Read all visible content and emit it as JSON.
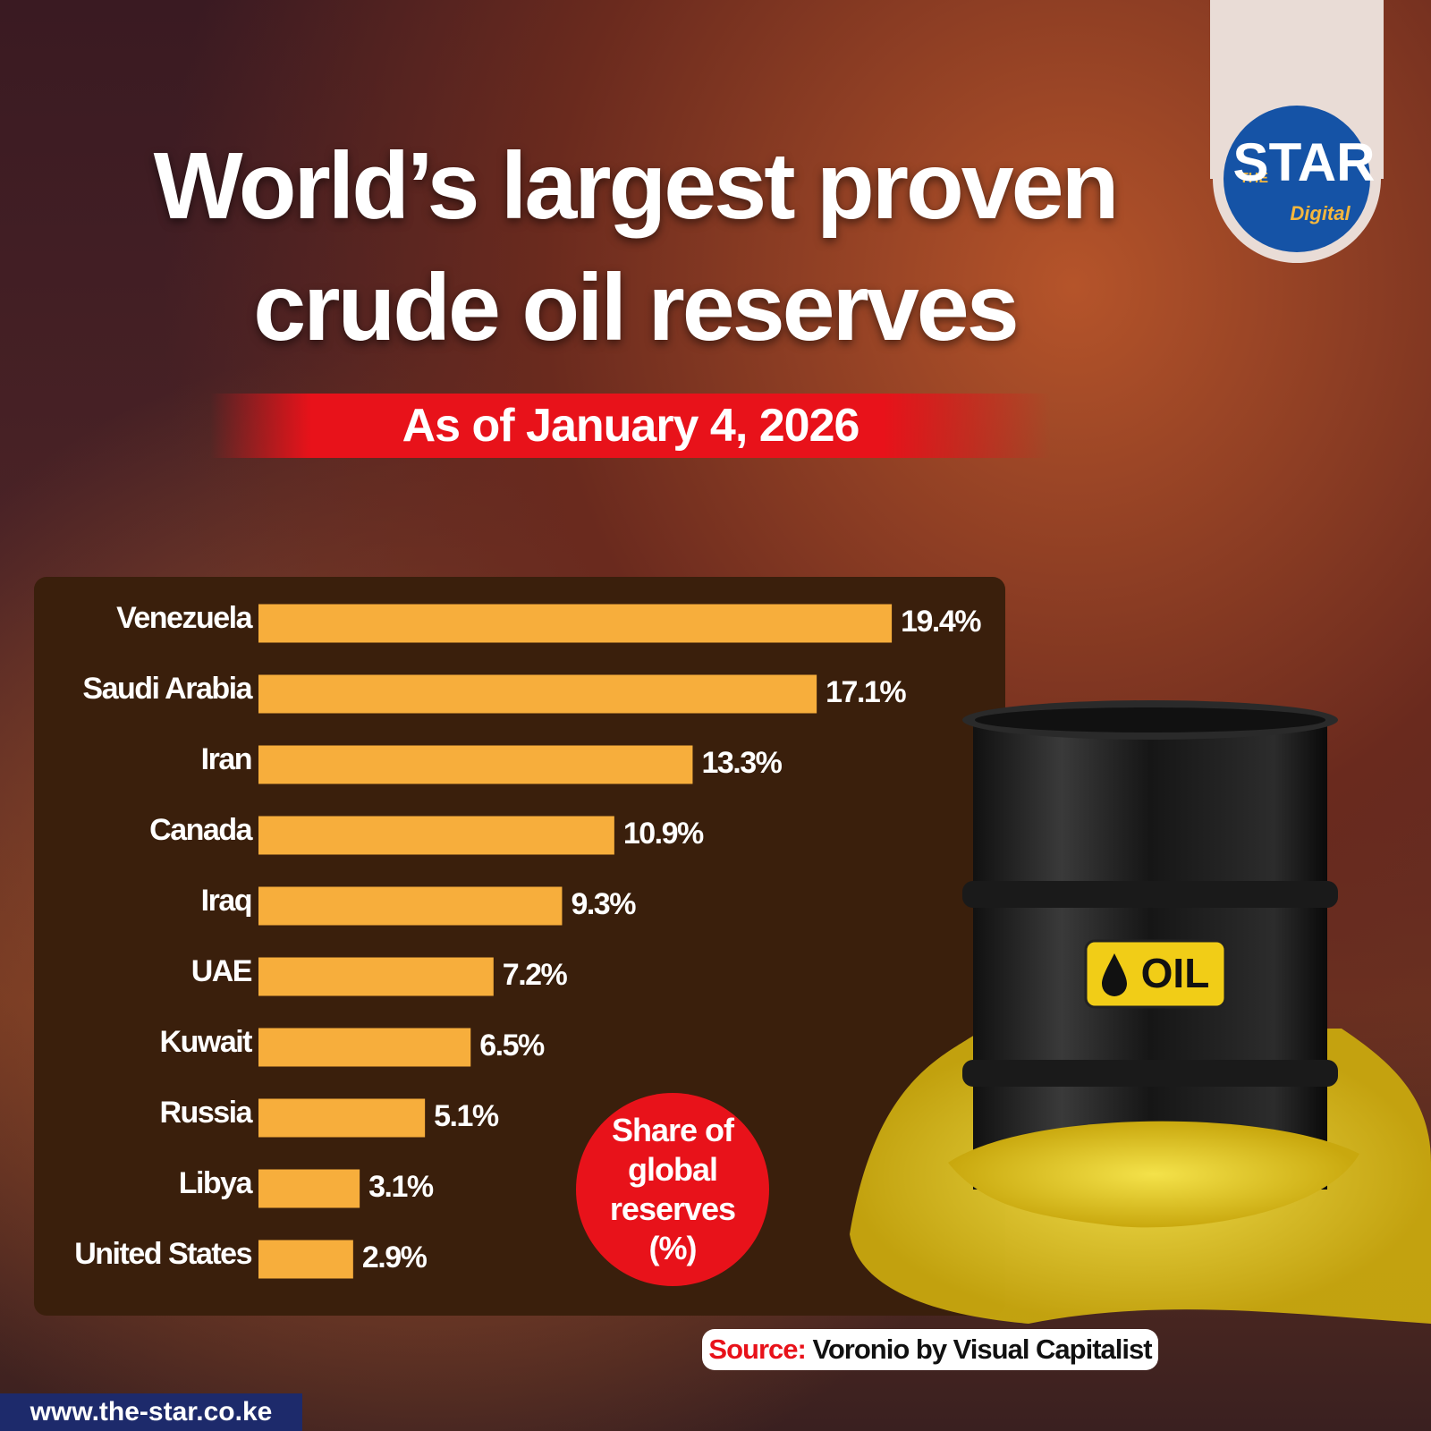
{
  "header": {
    "title": "World’s largest proven crude oil reserves",
    "subtitle": "As of January 4, 2026"
  },
  "logo": {
    "prefix": "THE",
    "name": "STAR",
    "suffix": "Digital"
  },
  "chart_data": {
    "type": "bar",
    "orientation": "horizontal",
    "categories": [
      "Venezuela",
      "Saudi Arabia",
      "Iran",
      "Canada",
      "Iraq",
      "UAE",
      "Kuwait",
      "Russia",
      "Libya",
      "United States"
    ],
    "values": [
      19.4,
      17.1,
      13.3,
      10.9,
      9.3,
      7.2,
      6.5,
      5.1,
      3.1,
      2.9
    ],
    "value_labels": [
      "19.4%",
      "17.1%",
      "13.3%",
      "10.9%",
      "9.3%",
      "7.2%",
      "6.5%",
      "5.1%",
      "3.1%",
      "2.9%"
    ],
    "color": "#f7ae3c",
    "annotation": "Share of global reserves (%)"
  },
  "barrel_label": "OIL",
  "source": {
    "label": "Source:",
    "text": "Voronio by Visual Capitalist"
  },
  "url": "www.the-star.co.ke"
}
